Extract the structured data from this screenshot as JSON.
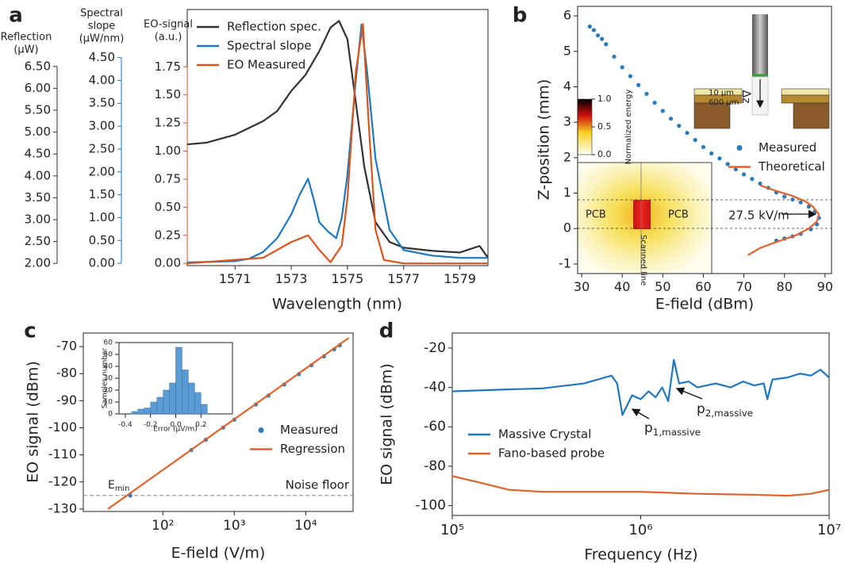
{
  "chart_data": [
    {
      "label": "a",
      "type": "line",
      "xlabel": "Wavelength (nm)",
      "xlim": [
        1569.3,
        1580
      ],
      "xticks": [
        1571,
        1573,
        1575,
        1577,
        1579
      ],
      "ylabel": [
        "Reflection",
        "(µW)"
      ],
      "ylim": [
        1.95,
        7.8
      ],
      "yticks": [
        {
          "value": 2,
          "label": "2.00"
        },
        {
          "value": 2.5,
          "label": "2.50"
        },
        {
          "value": 3,
          "label": "3.00"
        },
        {
          "value": 3.5,
          "label": "3.50"
        },
        {
          "value": 4,
          "label": "4.00"
        },
        {
          "value": 4.5,
          "label": "4.50"
        },
        {
          "value": 5,
          "label": "5.00"
        },
        {
          "value": 5.5,
          "label": "5.50"
        },
        {
          "value": 6,
          "label": "6.00"
        },
        {
          "value": 6.5,
          "label": "6.50"
        }
      ],
      "y2label": [
        "Spectral",
        "slope",
        "(µW/nm)"
      ],
      "y2lim": [
        -0.05,
        5.55
      ],
      "y2ticks": [
        {
          "value": 0,
          "label": "0.00"
        },
        {
          "value": 0.5,
          "label": "0.50"
        },
        {
          "value": 1,
          "label": "1.00"
        },
        {
          "value": 1.5,
          "label": "1.50"
        },
        {
          "value": 2,
          "label": "2.00"
        },
        {
          "value": 2.5,
          "label": "2.50"
        },
        {
          "value": 3,
          "label": "3.00"
        },
        {
          "value": 3.5,
          "label": "3.50"
        },
        {
          "value": 4,
          "label": "4.00"
        },
        {
          "value": 4.5,
          "label": "4.50"
        }
      ],
      "y3label": [
        "EO-signal",
        "(a.u.)"
      ],
      "y3lim": [
        -0.02,
        2.26
      ],
      "y3ticks": [
        {
          "value": 0,
          "label": "0.00"
        },
        {
          "value": 0.25,
          "label": "0.25"
        },
        {
          "value": 0.5,
          "label": "0.50"
        },
        {
          "value": 0.75,
          "label": "0.75"
        },
        {
          "value": 1,
          "label": "1.00"
        },
        {
          "value": 1.25,
          "label": "1.25"
        },
        {
          "value": 1.5,
          "label": "1.50"
        },
        {
          "value": 1.75,
          "label": "1.75"
        }
      ],
      "legend": "upper left",
      "series": [
        {
          "name": "Reflection spec.",
          "color": "#333333",
          "axis": "y",
          "x": [
            1569.3,
            1570,
            1571,
            1572,
            1572.5,
            1573,
            1573.5,
            1574,
            1574.4,
            1574.7,
            1575,
            1575.3,
            1575.6,
            1576,
            1576.5,
            1577,
            1578,
            1579,
            1579.7,
            1580
          ],
          "values": [
            4.72,
            4.76,
            4.94,
            5.25,
            5.48,
            5.94,
            6.3,
            6.85,
            7.39,
            7.54,
            7.12,
            5.67,
            4.21,
            2.94,
            2.49,
            2.36,
            2.29,
            2.25,
            2.4,
            2.13
          ]
        },
        {
          "name": "Spectral slope",
          "color": "#1f77c0",
          "axis": "y2",
          "x": [
            1569.3,
            1570,
            1571,
            1571.5,
            1572,
            1572.5,
            1573,
            1573.3,
            1573.6,
            1573.8,
            1574,
            1574.3,
            1574.6,
            1574.8,
            1575,
            1575.3,
            1575.5,
            1575.7,
            1576,
            1576.5,
            1577,
            1578,
            1579,
            1580
          ],
          "values": [
            0.02,
            0.03,
            0.05,
            0.1,
            0.25,
            0.55,
            1.07,
            1.5,
            1.85,
            1.4,
            0.9,
            0.7,
            0.55,
            1.0,
            1.94,
            4.01,
            5.22,
            4.19,
            2.28,
            0.73,
            0.29,
            0.17,
            0.12,
            0.12
          ]
        },
        {
          "name": "EO Measured",
          "color": "#d9541e",
          "axis": "y3",
          "x": [
            1569.3,
            1572,
            1573,
            1573.6,
            1574,
            1574.4,
            1574.8,
            1575,
            1575.3,
            1575.55,
            1575.8,
            1576,
            1576.3,
            1577,
            1580
          ],
          "values": [
            0,
            0.05,
            0.19,
            0.25,
            0.12,
            0.01,
            0.16,
            0.58,
            1.71,
            2.13,
            1.07,
            0.3,
            0.03,
            0,
            0
          ]
        }
      ]
    },
    {
      "label": "b",
      "type": "scatter",
      "xlabel": "E-field (dBm)",
      "ylabel": "Z-position (mm)",
      "xlim": [
        29,
        91.6
      ],
      "xticks": [
        30,
        40,
        50,
        60,
        70,
        80,
        90
      ],
      "ylim": [
        -1.27,
        6.27
      ],
      "yticks": [
        -1,
        0,
        1,
        2,
        3,
        4,
        5,
        6
      ],
      "legend": "center right",
      "series": [
        {
          "name": "Measured",
          "type": "scatter",
          "color": "#2b7bba",
          "x": [
            32,
            33,
            34,
            35,
            36,
            38,
            40,
            42,
            44,
            46,
            48,
            50,
            52,
            54,
            56,
            58,
            60,
            62,
            64,
            66,
            68,
            70,
            72,
            74,
            76,
            78,
            80,
            82,
            84,
            86,
            87.5,
            88.5,
            88,
            86.5,
            84,
            82,
            80,
            78
          ],
          "values": [
            5.7,
            5.6,
            5.45,
            5.35,
            5.2,
            4.85,
            4.55,
            4.3,
            4.05,
            3.8,
            3.55,
            3.32,
            3.1,
            2.9,
            2.7,
            2.5,
            2.3,
            2.12,
            1.98,
            1.82,
            1.67,
            1.53,
            1.4,
            1.27,
            1.15,
            1.02,
            0.9,
            0.82,
            0.74,
            0.62,
            0.48,
            0.3,
            0.12,
            -0.02,
            -0.15,
            -0.22,
            -0.28,
            -0.34
          ]
        },
        {
          "name": "Theoretical",
          "type": "line",
          "color": "#e0622a",
          "x": [
            71,
            74,
            77,
            80,
            83,
            86,
            88,
            88.5,
            87,
            85,
            82,
            78,
            74
          ],
          "values": [
            -0.75,
            -0.55,
            -0.42,
            -0.3,
            -0.18,
            0,
            0.2,
            0.4,
            0.62,
            0.78,
            0.92,
            1.06,
            1.22
          ]
        }
      ],
      "annotations": [
        "27.5 kV/m",
        "PCB",
        "PCB",
        "Scanned line",
        "10 µm",
        "600 µm",
        "Δz"
      ],
      "colorbar": {
        "label": "Normalized energy",
        "ticks": [
          {
            "value": 0,
            "label": "0.0"
          },
          {
            "value": 0.5,
            "label": "0.5"
          },
          {
            "value": 1,
            "label": "1.0"
          }
        ]
      }
    },
    {
      "label": "c",
      "type": "scatter",
      "xscale": "log",
      "xlabel": "E-field (V/m)",
      "ylabel": "EO signal (dBm)",
      "xlim": [
        7.7,
        46000
      ],
      "xticks": [
        {
          "value": 100,
          "label": "10²"
        },
        {
          "value": 1000,
          "label": "10³"
        },
        {
          "value": 10000,
          "label": "10⁴"
        }
      ],
      "ylim": [
        -130.9,
        -65
      ],
      "yticks": [
        -70,
        -80,
        -90,
        -100,
        -110,
        -120,
        -130
      ],
      "legend": "center right",
      "series": [
        {
          "name": "Measured",
          "type": "scatter",
          "color": "#2b7bba",
          "x": [
            35,
            250,
            400,
            700,
            1000,
            2000,
            3000,
            5000,
            8000,
            12000,
            18000,
            25000,
            30000
          ],
          "values": [
            -125,
            -108.2,
            -104.4,
            -99.9,
            -97,
            -91.4,
            -88.1,
            -84,
            -80.2,
            -76.9,
            -73.6,
            -71,
            -69.5
          ]
        },
        {
          "name": "Regression",
          "type": "line",
          "color": "#e0622a",
          "x": [
            17,
            40000
          ],
          "values": [
            -130,
            -66.8
          ]
        }
      ],
      "noise_floor": -125,
      "annotations": [
        {
          "text": "E",
          "sub": "min"
        },
        "Noise floor"
      ]
    },
    {
      "type": "histogram",
      "xlabel": "Error (µV/m)",
      "ylabel": "Samples number",
      "color": "#5b9bd5",
      "bins": [
        -0.35,
        -0.3,
        -0.25,
        -0.2,
        -0.15,
        -0.1,
        -0.05,
        0,
        0.05,
        0.1,
        0.15,
        0.2,
        0.25
      ],
      "values": [
        2,
        4,
        5,
        10,
        14,
        20,
        26,
        56,
        37,
        26,
        18,
        8
      ],
      "xlim": [
        -0.45,
        0.45
      ],
      "xticks": [
        -0.4,
        -0.2,
        {
          "value": 0,
          "label": "0.0"
        },
        0.2
      ],
      "ylim": [
        0,
        60
      ],
      "yticks": [
        0,
        10,
        20,
        30,
        40,
        50,
        60
      ]
    },
    {
      "label": "d",
      "type": "line",
      "xscale": "log",
      "xlabel": "Frequency (Hz)",
      "ylabel": "EO signal (dBm)",
      "xlim": [
        100000,
        10000000
      ],
      "xticks": [
        {
          "value": 100000,
          "label": "10⁵"
        },
        {
          "value": 1000000,
          "label": "10⁶"
        },
        {
          "value": 10000000,
          "label": "10⁷"
        }
      ],
      "ylim": [
        -105,
        -12.4
      ],
      "yticks": [
        -20,
        -40,
        -60,
        -80,
        -100
      ],
      "legend": "lower left",
      "series": [
        {
          "name": "Massive Crystal",
          "color": "#1f77c0",
          "x": [
            100000,
            200000,
            300000,
            500000,
            700000,
            750000,
            800000,
            900000,
            1000000,
            1100000,
            1200000,
            1300000,
            1400000,
            1500000,
            1600000,
            1800000,
            2000000,
            2500000,
            3000000,
            3500000,
            4000000,
            4500000,
            4700000,
            5000000,
            6000000,
            7000000,
            8000000,
            9000000,
            10000000
          ],
          "values": [
            -42,
            -41,
            -40.5,
            -38,
            -34,
            -38,
            -54,
            -44,
            -46,
            -42,
            -45,
            -40,
            -47,
            -26,
            -38,
            -37,
            -40,
            -38,
            -40,
            -37,
            -39,
            -38,
            -46,
            -36,
            -35,
            -33,
            -34,
            -31,
            -35
          ]
        },
        {
          "name": "Fano-based probe",
          "color": "#e0622a",
          "x": [
            100000,
            150000,
            200000,
            300000,
            500000,
            1000000,
            2000000,
            4000000,
            6000000,
            8000000,
            10000000
          ],
          "values": [
            -85,
            -89,
            -92,
            -93,
            -93,
            -93,
            -94,
            -94.5,
            -95,
            -94,
            -92
          ]
        }
      ],
      "annotations": [
        {
          "text": "p",
          "sub": "1,massive"
        },
        {
          "text": "p",
          "sub": "2,massive"
        }
      ]
    }
  ]
}
